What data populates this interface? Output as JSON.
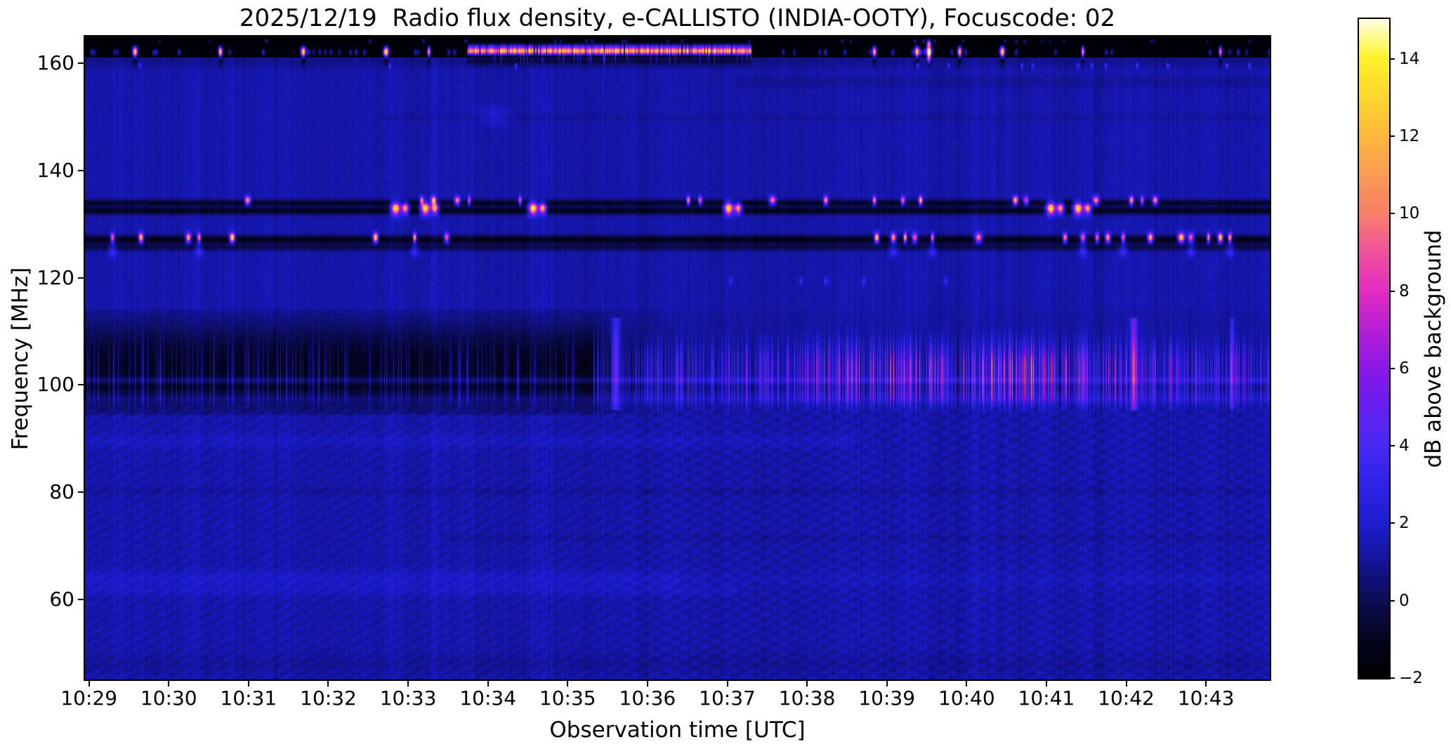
{
  "figure": {
    "background": "#ffffff",
    "text_color": "#000000"
  },
  "chart_data": {
    "type": "heatmap",
    "title": "2025/12/19  Radio flux density, e-CALLISTO (INDIA-OOTY), Focuscode: 02",
    "xlabel": "Observation time [UTC]",
    "ylabel": "Frequency [MHz]",
    "x_ticks": [
      "10:29",
      "10:30",
      "10:31",
      "10:32",
      "10:33",
      "10:34",
      "10:35",
      "10:36",
      "10:37",
      "10:38",
      "10:39",
      "10:40",
      "10:41",
      "10:42",
      "10:43"
    ],
    "x_range_utc": [
      "10:28:57",
      "10:43:48"
    ],
    "x_span_seconds": 891,
    "y_ticks": [
      160,
      140,
      120,
      100,
      80,
      60
    ],
    "ylim": [
      45,
      165
    ],
    "grid": false,
    "colorbar": {
      "label": "dB above background",
      "ticks": [
        14,
        12,
        10,
        8,
        6,
        4,
        2,
        0,
        -2
      ],
      "tick_labels": [
        "14",
        "12",
        "10",
        "8",
        "6",
        "4",
        "2",
        "0",
        "−2"
      ],
      "range": [
        -2,
        15.03
      ],
      "colormap_stops": [
        [
          0.0,
          "#000000"
        ],
        [
          0.06,
          "#04041f"
        ],
        [
          0.118,
          "#0c0c52"
        ],
        [
          0.18,
          "#14149a"
        ],
        [
          0.235,
          "#1d1dd0"
        ],
        [
          0.3,
          "#3023e8"
        ],
        [
          0.353,
          "#4828f2"
        ],
        [
          0.42,
          "#6b1eee"
        ],
        [
          0.471,
          "#8b18e6"
        ],
        [
          0.53,
          "#b81fd6"
        ],
        [
          0.588,
          "#e22cc0"
        ],
        [
          0.65,
          "#f0559a"
        ],
        [
          0.706,
          "#f88069"
        ],
        [
          0.77,
          "#fb9d52"
        ],
        [
          0.824,
          "#fcb83c"
        ],
        [
          0.88,
          "#fdd62f"
        ],
        [
          0.941,
          "#fdf22a"
        ],
        [
          1.0,
          "#ffffe6"
        ]
      ]
    },
    "features": {
      "background_level_db": 1.38,
      "rfi_top_band": {
        "description": "Black RFI band 161-165 MHz with saturated white/yellow bursts and scattered blue dashes",
        "black_band_1": {
          "f_hi": 165.0,
          "f_lo": 163.6,
          "level_db": -1.75
        },
        "black_band_2": {
          "f_hi": 163.6,
          "f_lo": 161.2,
          "level_db": -1.6
        },
        "bright_segment": {
          "f": 162.35,
          "t0": 0.323,
          "t1": 0.562,
          "amp_db": 15
        },
        "blobs": [
          {
            "t": 0.042,
            "amp": 15,
            "w": 5
          },
          {
            "t": 0.114,
            "amp": 15,
            "w": 4
          },
          {
            "t": 0.184,
            "amp": 15,
            "w": 5
          },
          {
            "t": 0.254,
            "amp": 15,
            "w": 5
          },
          {
            "t": 0.29,
            "amp": 13,
            "w": 3
          },
          {
            "t": 0.666,
            "amp": 14,
            "w": 4
          },
          {
            "t": 0.702,
            "amp": 15,
            "w": 5
          },
          {
            "t": 0.712,
            "amp": 15,
            "w": 6,
            "tall": true
          },
          {
            "t": 0.738,
            "amp": 14,
            "w": 4
          },
          {
            "t": 0.774,
            "amp": 15,
            "w": 5
          },
          {
            "t": 0.842,
            "amp": 13,
            "w": 3
          },
          {
            "t": 0.958,
            "amp": 12,
            "w": 3
          }
        ],
        "speckle_row_in_band_f": 162.1,
        "speckle_row_below_f": 159.6,
        "speckle_row_top_f": 164.2
      },
      "aeronautical_band": {
        "description": "Dark horizontal channels near 125-134 MHz with intermittent bright aircraft transmissions",
        "dark_lines": [
          {
            "f": 134.0,
            "sigma": 0.45,
            "amp": -2.1
          },
          {
            "f": 132.55,
            "sigma": 0.5,
            "amp": -2.35
          },
          {
            "f": 127.15,
            "sigma": 0.55,
            "amp": -2.5
          },
          {
            "f": 125.7,
            "sigma": 0.45,
            "amp": -1.5
          }
        ],
        "dash_row_a": {
          "f": 134.45,
          "amp": 11,
          "times": [
            0.137,
            0.284,
            0.294,
            0.314,
            0.324,
            0.367,
            0.509,
            0.519,
            0.58,
            0.625,
            0.666,
            0.69,
            0.705,
            0.785,
            0.794,
            0.853,
            0.883,
            0.892,
            0.903
          ]
        },
        "blob_row_b": {
          "f": 132.95,
          "amp": 14.5,
          "times": [
            0.262,
            0.287,
            0.378,
            0.543,
            0.815,
            0.838
          ]
        },
        "dash_row_c": {
          "f": 127.5,
          "amp": 12,
          "times": [
            0.023,
            0.047,
            0.087,
            0.096,
            0.124,
            0.245,
            0.278,
            0.305,
            0.668,
            0.682,
            0.692,
            0.7,
            0.715,
            0.754,
            0.827,
            0.842,
            0.854,
            0.863,
            0.876,
            0.899,
            0.925,
            0.933,
            0.948,
            0.958,
            0.966
          ]
        },
        "smudge_row_f": 125.1
      },
      "dots_119MHz": {
        "f": 119.4,
        "points": [
          [
            0.545,
            2.0
          ],
          [
            0.604,
            2.4
          ],
          [
            0.625,
            2.6
          ],
          [
            0.657,
            2.2
          ],
          [
            0.726,
            2.0
          ]
        ]
      },
      "fm_band": {
        "description": "88-113 MHz FM broadcast band: dark absorbed region before ~10:35.5, strong blue/magenta striations after, peaking pink 10:40-10:42 near 103 MHz",
        "f_lo": 94.5,
        "f_hi": 114.0,
        "onset": 0.435,
        "dark_amp": 2.45,
        "pedestal": 1.2,
        "max_amp_ramp": [
          [
            0,
            3.0
          ],
          [
            0.4,
            3.2
          ],
          [
            0.44,
            4.0
          ],
          [
            0.47,
            5.0
          ],
          [
            0.575,
            6.2
          ],
          [
            0.65,
            8.0
          ],
          [
            0.7,
            9.5
          ],
          [
            0.78,
            9.8
          ],
          [
            0.83,
            9.2
          ],
          [
            0.88,
            6.2
          ],
          [
            0.93,
            5.0
          ],
          [
            1,
            5.6
          ]
        ],
        "vertical_streaks": [
          [
            0.448,
            4.5,
            4
          ],
          [
            0.885,
            6.5,
            3
          ],
          [
            0.968,
            3.5,
            2
          ]
        ]
      },
      "lines": [
        {
          "f": 100.9,
          "sigma": 0.45,
          "amp": 1.15,
          "t0": 0,
          "t1": 1
        },
        {
          "f": 99.6,
          "sigma": 0.55,
          "amp": -0.5,
          "t0": 0,
          "t1": 1
        },
        {
          "f": 97.4,
          "sigma": 0.4,
          "amp": 0.45,
          "t0": 0,
          "t1": 1
        },
        {
          "f": 89.6,
          "sigma": 0.9,
          "amp": 0.35,
          "t0": 0,
          "t1": 0.65
        },
        {
          "f": 80.2,
          "sigma": 0.5,
          "amp": -0.3,
          "t0": 0,
          "t1": 1
        },
        {
          "f": 71.5,
          "sigma": 0.5,
          "amp": -0.25,
          "t0": 0.3,
          "t1": 1
        },
        {
          "f": 63.8,
          "sigma": 1.1,
          "amp": 0.55,
          "t0": 0,
          "t1": 0.5
        },
        {
          "f": 63.8,
          "sigma": 1.1,
          "amp": 0.25,
          "t0": 0.5,
          "t1": 1
        },
        {
          "f": 61.6,
          "sigma": 0.7,
          "amp": 0.35,
          "t0": 0,
          "t1": 0.55
        },
        {
          "f": 150.0,
          "sigma": 0.4,
          "amp": -0.3,
          "t0": 0.25,
          "t1": 1
        },
        {
          "f": 156.5,
          "sigma": 0.8,
          "amp": -0.35,
          "t0": 0.55,
          "t1": 1
        },
        {
          "f": 160.4,
          "sigma": 0.8,
          "amp": -0.5,
          "t0": 0,
          "t1": 1
        },
        {
          "f": 48.0,
          "sigma": 1.5,
          "amp": -0.3,
          "t0": 0,
          "t1": 1
        }
      ],
      "smudges": [
        {
          "t": 0.345,
          "f": 150.2,
          "amp": 0.9,
          "w": 30,
          "fw": 1.3
        }
      ]
    }
  }
}
